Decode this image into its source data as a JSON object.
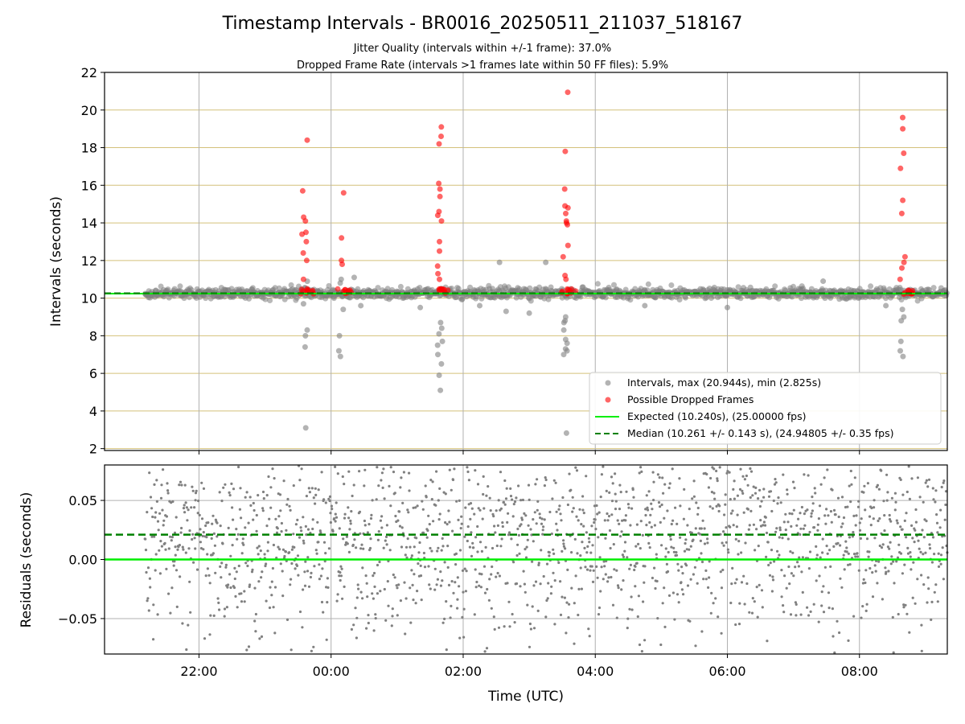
{
  "chart_data": {
    "type": "scatter",
    "title": "Timestamp Intervals - BR0016_20250511_211037_518167",
    "subtitle_lines": [
      "Jitter Quality (intervals within +/-1 frame): 37.0%",
      "Dropped Frame Rate (intervals >1 frames late within 50 FF files): 5.9%"
    ],
    "xlabel": "Time (UTC)",
    "x_ticks": [
      "22:00",
      "00:00",
      "02:00",
      "04:00",
      "06:00",
      "08:00"
    ],
    "x_tick_hours": [
      22,
      24,
      26,
      28,
      30,
      32
    ],
    "xlim_hours": [
      20.57,
      33.33
    ],
    "data_start_hour": 21.18,
    "data_end_hour": 33.33,
    "colors": {
      "intervals": "#808080",
      "dropped": "#ff0000",
      "expected": "#00ee00",
      "median": "#008000",
      "hgrid_top": "#d4c17a",
      "grid": "#b0b0b0"
    },
    "top_panel": {
      "ylabel": "Intervals (seconds)",
      "ylim": [
        1.9,
        22
      ],
      "y_ticks": [
        "2",
        "4",
        "6",
        "8",
        "10",
        "12",
        "14",
        "16",
        "18",
        "20",
        "22"
      ],
      "y_tick_values": [
        2,
        4,
        6,
        8,
        10,
        12,
        14,
        16,
        18,
        20,
        22
      ],
      "expected_interval": 10.24,
      "median_interval": 10.261,
      "legend": [
        {
          "label": "Intervals, max (20.944s), min (2.825s)",
          "marker": "dot-gray"
        },
        {
          "label": "Possible Dropped Frames",
          "marker": "dot-red"
        },
        {
          "label": "Expected (10.240s), (25.00000 fps)",
          "marker": "line-green"
        },
        {
          "label": "Median (10.261 +/- 0.143 s), (24.94805 +/- 0.35 fps)",
          "marker": "dashed-darkgreen"
        }
      ],
      "clusters": [
        {
          "hour": 23.6,
          "red": [
            15.7,
            14.3,
            14.1,
            13.5,
            13.4,
            13.0,
            12.4,
            12.0,
            11.0,
            18.4
          ],
          "gray": [
            8.3,
            8.0,
            7.4,
            3.1,
            10.9,
            9.7
          ]
        },
        {
          "hour": 24.15,
          "red": [
            13.2,
            15.6,
            12.0,
            11.8
          ],
          "gray": [
            11.0,
            10.8,
            9.4,
            8.0,
            7.2,
            6.9
          ]
        },
        {
          "hour": 25.65,
          "red": [
            18.6,
            18.2,
            19.1,
            16.1,
            15.8,
            15.4,
            14.6,
            14.4,
            14.1,
            13.0,
            12.5,
            11.7,
            11.3,
            11.0
          ],
          "gray": [
            8.7,
            8.4,
            8.1,
            7.7,
            7.5,
            7.0,
            6.5,
            5.9,
            5.1
          ]
        },
        {
          "hour": 27.55,
          "red": [
            20.944,
            17.8,
            15.8,
            14.9,
            14.8,
            14.5,
            14.1,
            14.0,
            13.9,
            12.8,
            12.2,
            11.2,
            11.0
          ],
          "gray": [
            9.0,
            8.8,
            8.7,
            8.3,
            7.8,
            7.6,
            7.3,
            7.2,
            7.0,
            2.825
          ]
        },
        {
          "hour": 32.65,
          "red": [
            19.6,
            19.0,
            17.7,
            16.9,
            15.2,
            14.5,
            12.2,
            11.9,
            11.6,
            11.0
          ],
          "gray": [
            9.4,
            9.0,
            8.8,
            7.7,
            7.2,
            6.9
          ]
        }
      ],
      "scattered_gray": [
        {
          "hour": 24.35,
          "value": 11.1
        },
        {
          "hour": 24.45,
          "value": 9.6
        },
        {
          "hour": 25.35,
          "value": 9.5
        },
        {
          "hour": 26.25,
          "value": 9.6
        },
        {
          "hour": 26.55,
          "value": 11.9
        },
        {
          "hour": 26.65,
          "value": 9.3
        },
        {
          "hour": 27.0,
          "value": 9.2
        },
        {
          "hour": 27.25,
          "value": 11.9
        },
        {
          "hour": 28.75,
          "value": 9.6
        },
        {
          "hour": 30.0,
          "value": 9.5
        },
        {
          "hour": 31.45,
          "value": 10.9
        },
        {
          "hour": 32.4,
          "value": 9.6
        }
      ]
    },
    "bottom_panel": {
      "ylabel": "Residuals (seconds)",
      "ylim": [
        -0.08,
        0.08
      ],
      "y_ticks": [
        "0.05",
        "0.00",
        "−0.05"
      ],
      "y_tick_values": [
        0.05,
        0.0,
        -0.05
      ],
      "expected_residual": 0.0,
      "median_residual": 0.021,
      "residual_spread": 0.08
    }
  }
}
